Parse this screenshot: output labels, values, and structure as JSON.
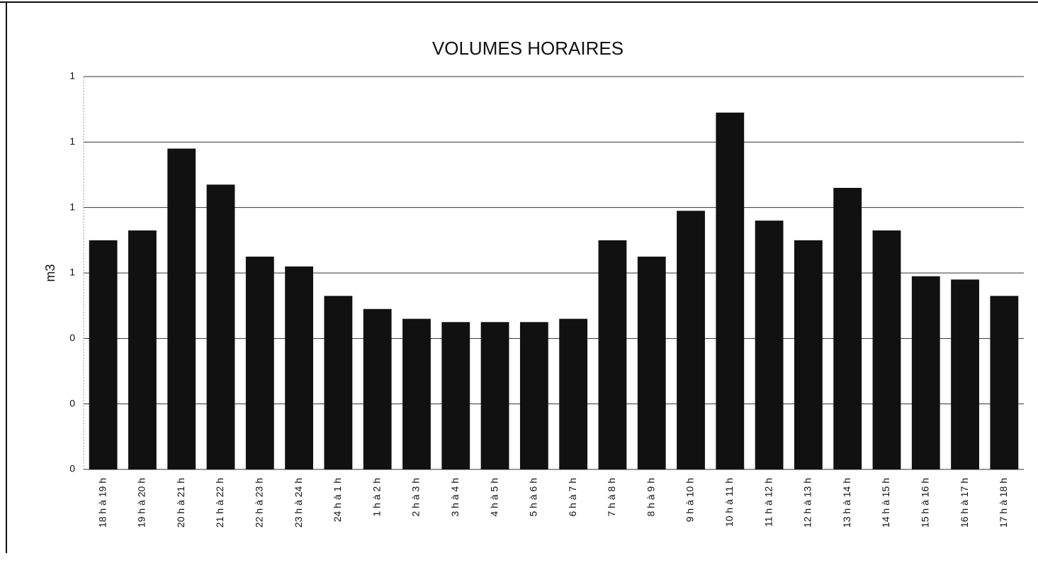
{
  "chart_data": {
    "type": "bar",
    "title": "VOLUMES HORAIRES",
    "y_label": "m3",
    "categories": [
      "18 h à 19 h",
      "19 h à 20 h",
      "20 h à 21 h",
      "21 h à 22 h",
      "22 h à 23 h",
      "23 h à 24 h",
      "24 h à 1 h",
      "1 h à 2 h",
      "2 h à 3 h",
      "3 h à 4 h",
      "4 h à 5 h",
      "5 h à 6 h",
      "6 h à 7 h",
      "7 h à 8 h",
      "8 h à 9 h",
      "9 h à 10 h",
      "10 h à 11 h",
      "11 h à 12 h",
      "12 h à 13 h",
      "13 h à 14 h",
      "14 h à 15 h",
      "15 h à 16 h",
      "16 h à 17 h",
      "17 h à 18 h"
    ],
    "values": [
      0.7,
      0.73,
      0.98,
      0.87,
      0.65,
      0.62,
      0.53,
      0.49,
      0.46,
      0.45,
      0.45,
      0.45,
      0.46,
      0.7,
      0.65,
      0.79,
      1.09,
      0.76,
      0.7,
      0.86,
      0.73,
      0.59,
      0.58,
      0.53
    ],
    "color": "#111111",
    "ylim": [
      0,
      1.2
    ],
    "yticks": [
      0,
      {
        "value": 0.2,
        "label": "0"
      },
      {
        "value": 0.4,
        "label": "0"
      },
      {
        "value": 0.6,
        "label": "1"
      },
      {
        "value": 0.8,
        "label": "1"
      },
      {
        "value": 1.0,
        "label": "1"
      },
      {
        "value": 1.2,
        "label": "1"
      }
    ],
    "grid": true
  }
}
